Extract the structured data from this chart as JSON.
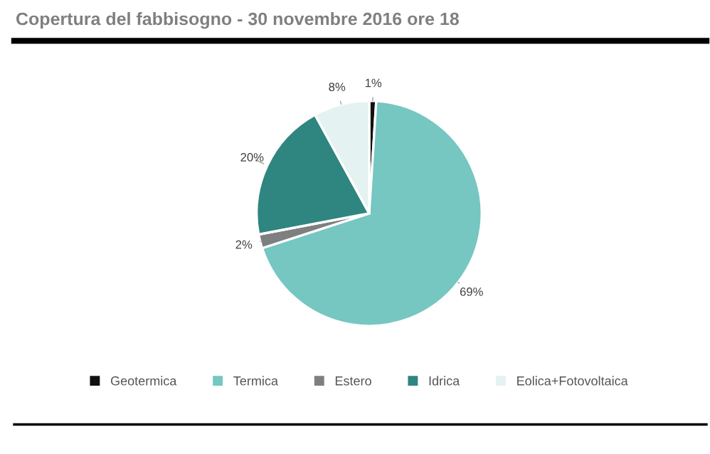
{
  "chart_data": {
    "type": "pie",
    "title": "Copertura del fabbisogno - 30 novembre 2016 ore 18",
    "categories": [
      "Geotermica",
      "Termica",
      "Estero",
      "Idrica",
      "Eolica+Fotovoltaica"
    ],
    "values": [
      1,
      69,
      2,
      20,
      8
    ],
    "colors": [
      "#111111",
      "#76c6c2",
      "#7f7f7f",
      "#2f8580",
      "#e4f2f2"
    ],
    "value_labels": [
      "1%",
      "69%",
      "2%",
      "20%",
      "8%"
    ],
    "legend": "bottom"
  }
}
